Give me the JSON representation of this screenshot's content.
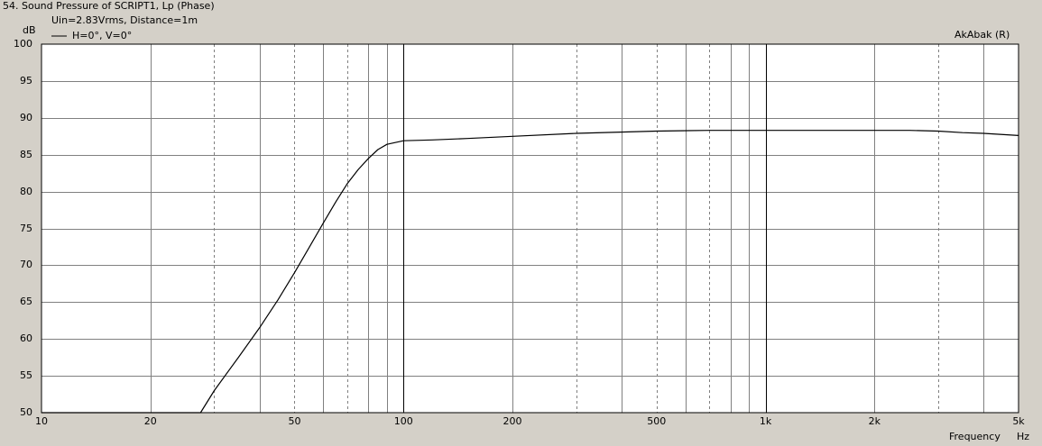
{
  "window": {
    "title": "54. Sound Pressure of SCRIPT1, Lp (Phase)",
    "subtitle": "Uin=2.83Vrms, Distance=1m",
    "brand": "AkAbak (R)"
  },
  "colors": {
    "background": "#d4d0c8",
    "plot_background": "#ffffff",
    "grid": "#808080",
    "curve": "#000000"
  },
  "chart_data": {
    "type": "line",
    "title": "54. Sound Pressure of SCRIPT1, Lp (Phase)",
    "subtitle": "Uin=2.83Vrms, Distance=1m",
    "xlabel": "Frequency",
    "xunit": "Hz",
    "ylabel": "dB",
    "x_scale": "log",
    "xlim": [
      10,
      5000
    ],
    "ylim": [
      50,
      100
    ],
    "grid": true,
    "legend_position": "top-left",
    "x_ticks": [
      {
        "value": 10,
        "label": "10"
      },
      {
        "value": 20,
        "label": "20"
      },
      {
        "value": 50,
        "label": "50"
      },
      {
        "value": 100,
        "label": "100"
      },
      {
        "value": 200,
        "label": "200"
      },
      {
        "value": 500,
        "label": "500"
      },
      {
        "value": 1000,
        "label": "1k"
      },
      {
        "value": 2000,
        "label": "2k"
      },
      {
        "value": 5000,
        "label": "5k"
      }
    ],
    "y_ticks": [
      {
        "value": 100,
        "label": "100"
      },
      {
        "value": 95,
        "label": "95"
      },
      {
        "value": 90,
        "label": "90"
      },
      {
        "value": 85,
        "label": "85"
      },
      {
        "value": 80,
        "label": "80"
      },
      {
        "value": 75,
        "label": "75"
      },
      {
        "value": 70,
        "label": "70"
      },
      {
        "value": 65,
        "label": "65"
      },
      {
        "value": 60,
        "label": "60"
      },
      {
        "value": 55,
        "label": "55"
      },
      {
        "value": 50,
        "label": "50"
      }
    ],
    "series": [
      {
        "name": "H=0°, V=0°",
        "x": [
          10,
          15,
          20,
          27.5,
          30,
          35,
          40,
          45,
          50,
          55,
          60,
          65,
          70,
          75,
          80,
          85,
          90,
          100,
          120,
          150,
          200,
          300,
          500,
          700,
          1000,
          1500,
          2000,
          2500,
          3000,
          3500,
          4000,
          5000
        ],
        "y": [
          50,
          50,
          50,
          50,
          53,
          57.5,
          61.5,
          65.3,
          69,
          72.5,
          75.7,
          78.6,
          81.1,
          83,
          84.5,
          85.7,
          86.4,
          86.9,
          87.0,
          87.2,
          87.5,
          87.9,
          88.2,
          88.3,
          88.3,
          88.3,
          88.3,
          88.3,
          88.2,
          88.0,
          87.9,
          87.6
        ]
      }
    ]
  }
}
